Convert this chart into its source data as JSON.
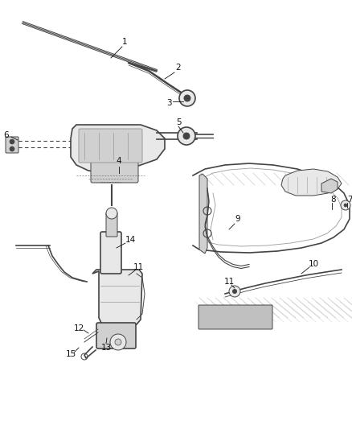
{
  "bg_color": "#ffffff",
  "line_color": "#444444",
  "gray_light": "#cccccc",
  "gray_med": "#999999",
  "gray_dark": "#666666",
  "fill_light": "#e8e8e8",
  "fill_med": "#d0d0d0",
  "fig_width": 4.38,
  "fig_height": 5.33,
  "dpi": 100,
  "label_fontsize": 7.5,
  "label_color": "#111111"
}
